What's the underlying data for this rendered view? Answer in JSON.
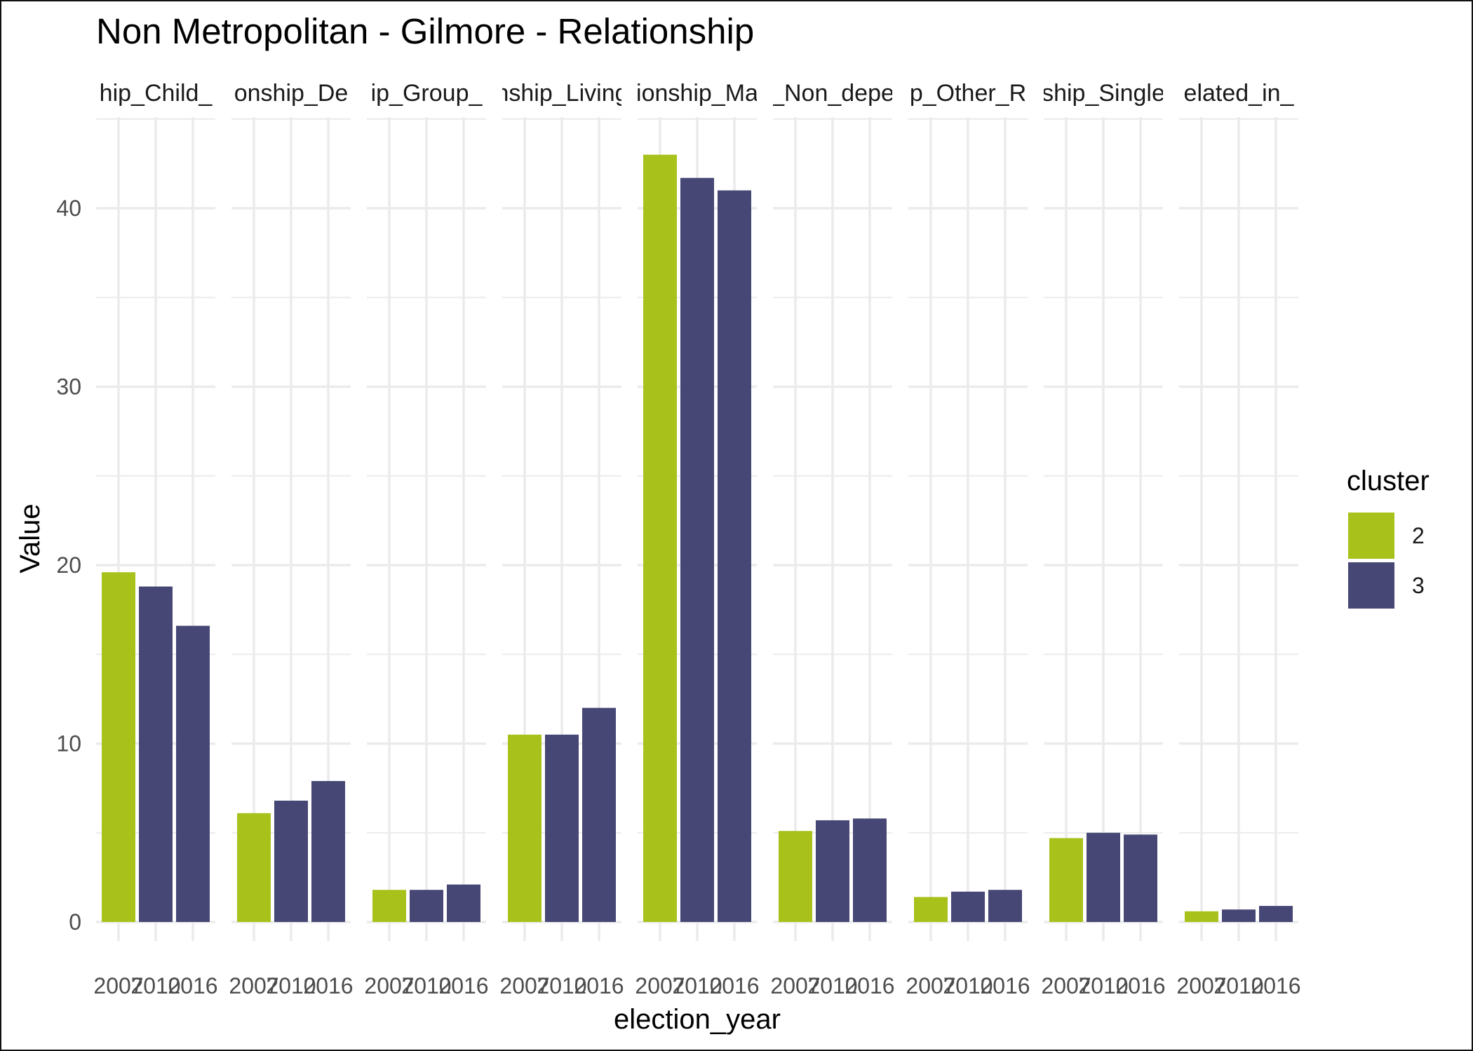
{
  "chart_data": {
    "type": "bar",
    "title": "Non Metropolitan - Gilmore - Relationship",
    "xlabel": "election_year",
    "ylabel": "Value",
    "ylim": [
      0,
      45
    ],
    "y_ticks": [
      0,
      10,
      20,
      30,
      40
    ],
    "grid": true,
    "categories": [
      "2007",
      "2010",
      "2016"
    ],
    "facet_labels": [
      "hip_Child_",
      "onship_De",
      "ip_Group_",
      "nship_Living",
      "ionship_Ma",
      "_Non_depe",
      "p_Other_R",
      "ship_Single",
      "elated_in_"
    ],
    "facets": [
      {
        "label_index": 0,
        "values": [
          19.6,
          18.8,
          16.6
        ],
        "clusters": [
          "2",
          "3",
          "3"
        ]
      },
      {
        "label_index": 1,
        "values": [
          6.1,
          6.8,
          7.9
        ],
        "clusters": [
          "2",
          "3",
          "3"
        ]
      },
      {
        "label_index": 2,
        "values": [
          1.8,
          1.8,
          2.1
        ],
        "clusters": [
          "2",
          "3",
          "3"
        ]
      },
      {
        "label_index": 3,
        "values": [
          10.5,
          10.5,
          12.0
        ],
        "clusters": [
          "2",
          "3",
          "3"
        ]
      },
      {
        "label_index": 4,
        "values": [
          43.0,
          41.7,
          41.0
        ],
        "clusters": [
          "2",
          "3",
          "3"
        ]
      },
      {
        "label_index": 5,
        "values": [
          5.1,
          5.7,
          5.8
        ],
        "clusters": [
          "2",
          "3",
          "3"
        ]
      },
      {
        "label_index": 6,
        "values": [
          1.4,
          1.7,
          1.8
        ],
        "clusters": [
          "2",
          "3",
          "3"
        ]
      },
      {
        "label_index": 7,
        "values": [
          4.7,
          5.0,
          4.9
        ],
        "clusters": [
          "2",
          "3",
          "3"
        ]
      },
      {
        "label_index": 8,
        "values": [
          0.6,
          0.7,
          0.9
        ],
        "clusters": [
          "2",
          "3",
          "3"
        ]
      }
    ],
    "legend": {
      "title": "cluster",
      "position": "right",
      "items": [
        {
          "label": "2",
          "color": "#a9c11b"
        },
        {
          "label": "3",
          "color": "#464775"
        }
      ]
    },
    "colors": {
      "grid": "#ebebeb",
      "tick_text": "#4d4d4d"
    }
  }
}
